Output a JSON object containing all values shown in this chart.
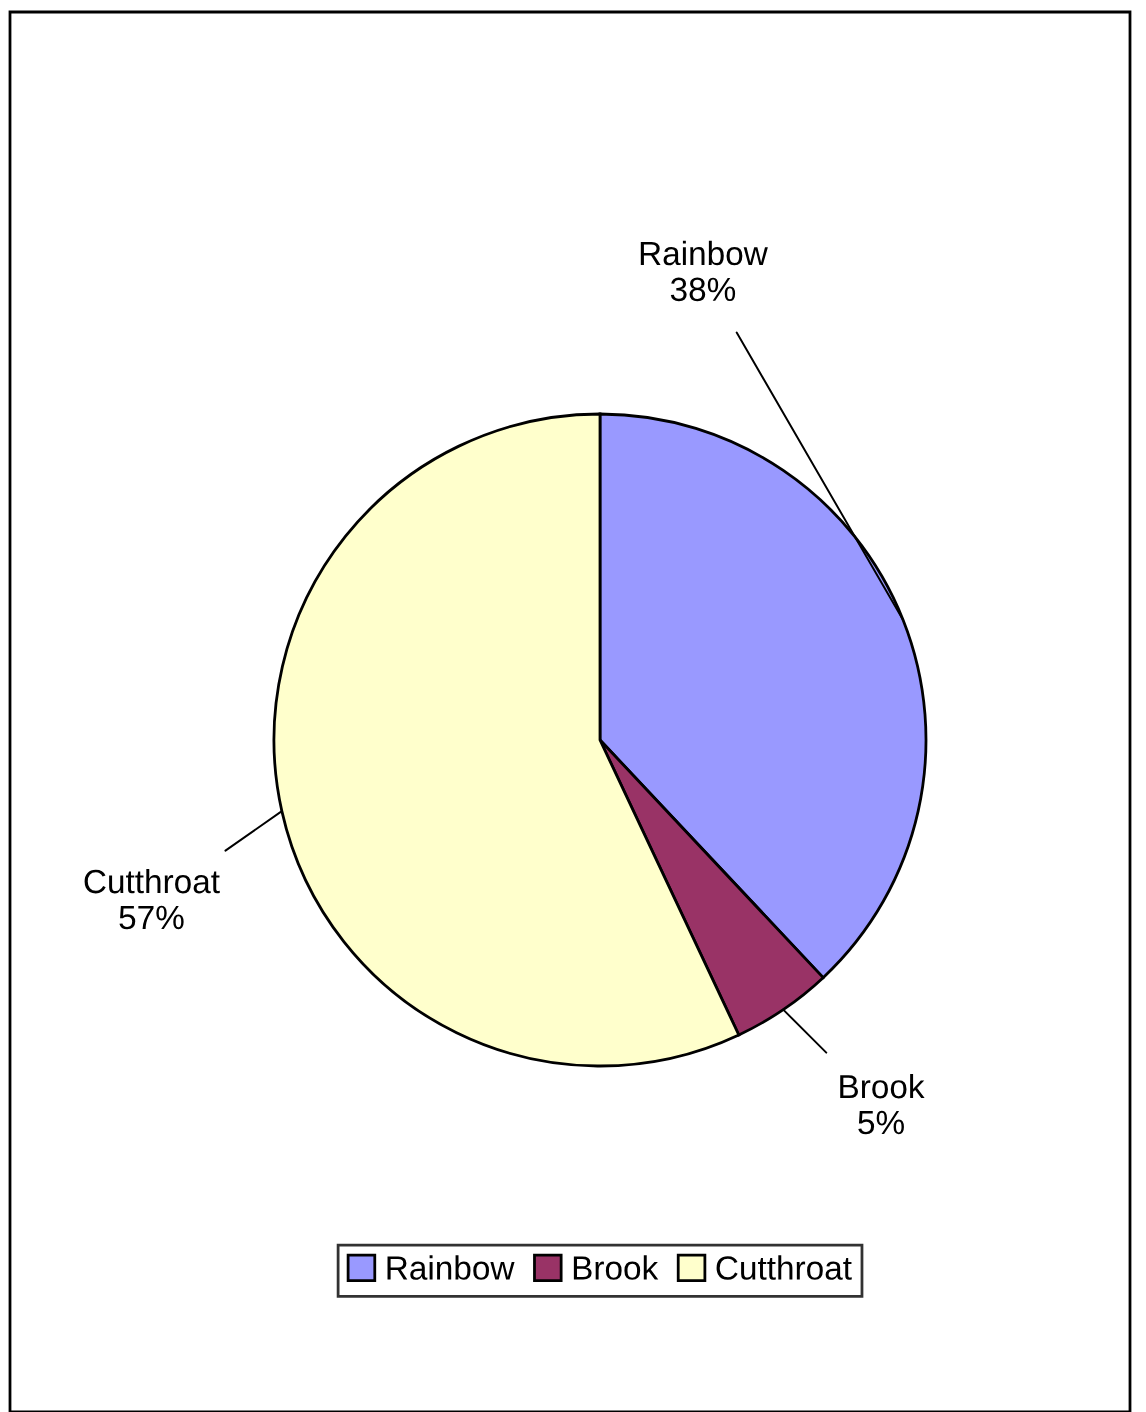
{
  "chart_data": {
    "type": "pie",
    "categories": [
      "Rainbow",
      "Brook",
      "Cutthroat"
    ],
    "values": [
      38,
      5,
      57
    ],
    "colors": [
      "#9999ff",
      "#993366",
      "#ffffcc"
    ],
    "value_labels": [
      "38%",
      "5%",
      "57%"
    ],
    "legend": "bottom"
  }
}
